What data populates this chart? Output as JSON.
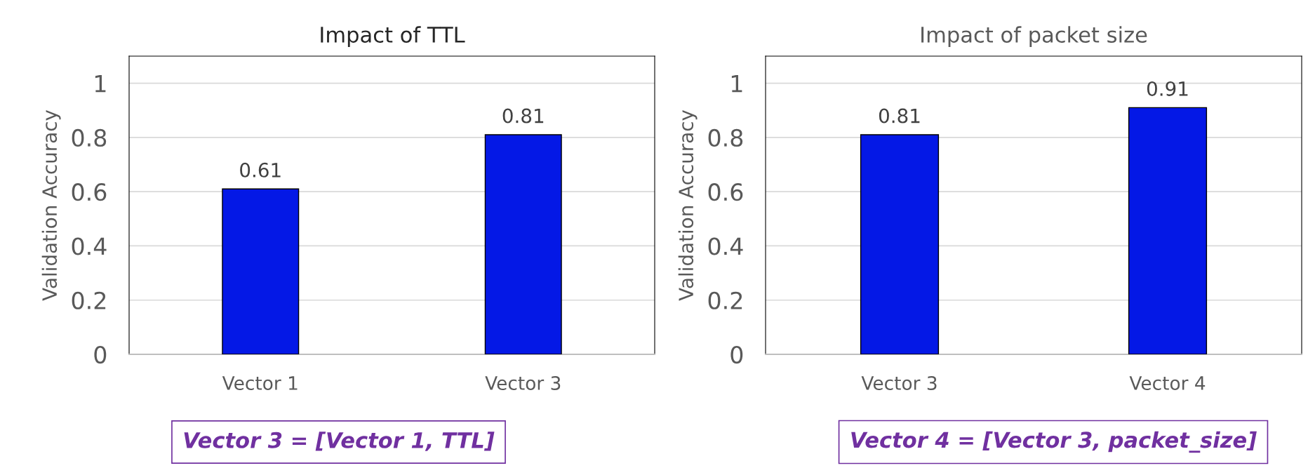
{
  "chart_data": [
    {
      "type": "bar",
      "title": "Impact of TTL",
      "ylabel": "Validation Accuracy",
      "categories": [
        "Vector 1",
        "Vector 3"
      ],
      "values": [
        0.61,
        0.81
      ],
      "color": "#0418e6",
      "ylim": [
        0,
        1.1
      ],
      "yticks": [
        0,
        0.2,
        0.4,
        0.6,
        0.8,
        1
      ],
      "grid": "y",
      "data_labels": true,
      "annotations": [
        "Vector 3 = [Vector 1, TTL]"
      ]
    },
    {
      "type": "bar",
      "title": "Impact of packet size",
      "ylabel": "Validation Accuracy",
      "categories": [
        "Vector 3",
        "Vector 4"
      ],
      "values": [
        0.81,
        0.91
      ],
      "color": "#0418e6",
      "ylim": [
        0,
        1.1
      ],
      "yticks": [
        0,
        0.2,
        0.4,
        0.6,
        0.8,
        1
      ],
      "grid": "y",
      "data_labels": true,
      "annotations": [
        "Vector 4 = [Vector 3, packet_size]"
      ]
    }
  ]
}
